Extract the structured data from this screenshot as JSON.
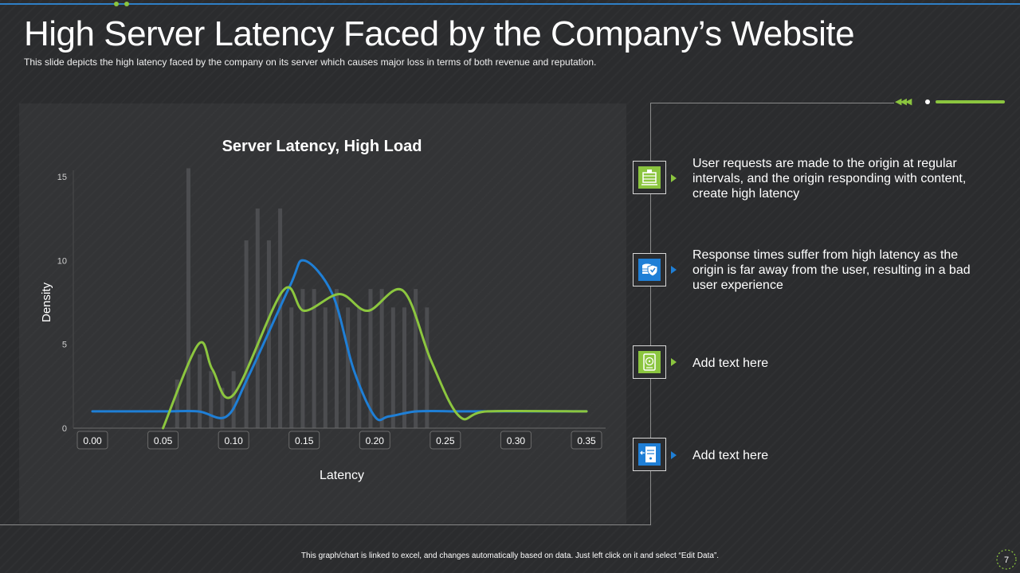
{
  "slide": {
    "title": "High Server Latency Faced by the Company’s Website",
    "subtitle": "This slide depicts the high latency faced by the company on its server which causes major loss in terms of both revenue  and reputation.",
    "footer": "This graph/chart is linked to excel, and changes automatically based on data. Just left click on it and select “Edit Data”.",
    "page_number": "7"
  },
  "colors": {
    "accent_green": "#8bc53f",
    "accent_blue": "#2f7fc6",
    "curve_blue": "#1f7fd6",
    "curve_green": "#8cc63f",
    "bars": "#4c4d50"
  },
  "items": [
    {
      "text": "User requests are made to the origin at regular intervals, and the origin responding with content, create high latency",
      "icon": "server-rack-icon",
      "color": "green"
    },
    {
      "text": "Response times suffer from high latency as the origin is far away from the user, resulting in a bad user experience",
      "icon": "database-shield-icon",
      "color": "blue"
    },
    {
      "text": "Add text here",
      "icon": "hard-drive-icon",
      "color": "green"
    },
    {
      "text": "Add text here",
      "icon": "server-transfer-icon",
      "color": "blue"
    }
  ],
  "chart_data": {
    "type": "bar",
    "title": "Server Latency, High Load",
    "xlabel": "Latency",
    "ylabel": "Density",
    "xlim": [
      0.0,
      0.35
    ],
    "ylim": [
      0,
      15
    ],
    "x_ticks": [
      "0.00",
      "0.05",
      "0.10",
      "0.15",
      "0.20",
      "0.25",
      "0.30",
      "0.35"
    ],
    "y_ticks": [
      "0",
      "5",
      "10",
      "15"
    ],
    "grid": false,
    "histogram": {
      "x": [
        0.06,
        0.068,
        0.076,
        0.084,
        0.092,
        0.1,
        0.109,
        0.117,
        0.125,
        0.133,
        0.141,
        0.149,
        0.157,
        0.165,
        0.173,
        0.181,
        0.189,
        0.197,
        0.205,
        0.213,
        0.221,
        0.229,
        0.237
      ],
      "values": [
        2.9,
        15.5,
        4.4,
        3.4,
        2.4,
        3.4,
        11.2,
        13.1,
        11.2,
        13.1,
        7.2,
        8.3,
        8.3,
        7.2,
        8.3,
        7.2,
        7.2,
        8.3,
        8.3,
        7.2,
        7.2,
        8.3,
        7.2
      ]
    },
    "series": [
      {
        "x": [
          0.0,
          0.05,
          0.075,
          0.095,
          0.11,
          0.14,
          0.15,
          0.17,
          0.185,
          0.2,
          0.21,
          0.23,
          0.26,
          0.28,
          0.35
        ],
        "values": [
          1.0,
          1.0,
          1.0,
          0.7,
          3.0,
          8.5,
          10.0,
          8.0,
          3.5,
          0.7,
          0.7,
          1.0,
          1.0,
          1.0,
          1.0
        ]
      },
      {
        "x": [
          0.05,
          0.075,
          0.085,
          0.1,
          0.135,
          0.15,
          0.175,
          0.195,
          0.22,
          0.24,
          0.26,
          0.28,
          0.35
        ],
        "values": [
          0.0,
          5.0,
          3.5,
          2.0,
          8.2,
          7.0,
          8.0,
          7.0,
          8.2,
          4.0,
          0.7,
          1.0,
          1.0
        ]
      }
    ]
  }
}
